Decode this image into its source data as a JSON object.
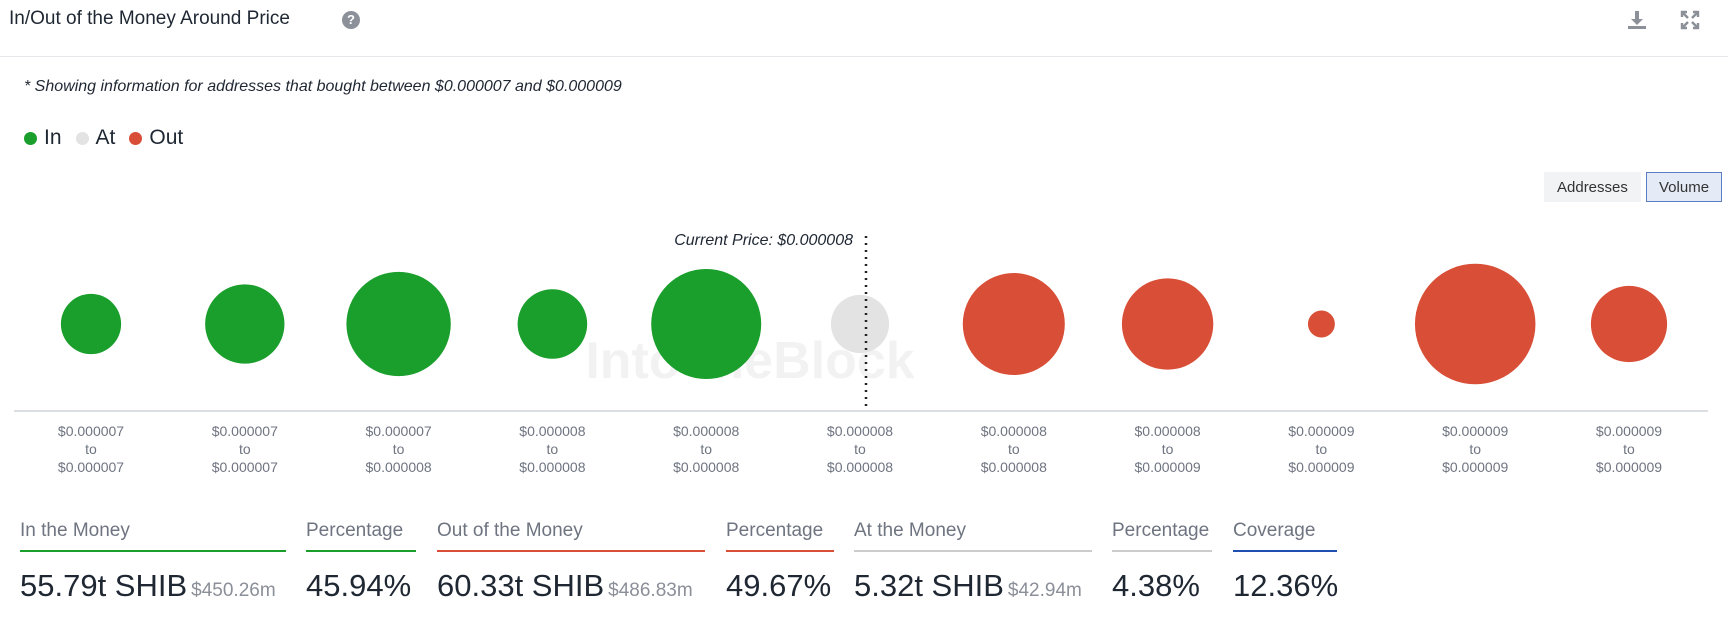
{
  "header": {
    "title": "In/Out of the Money Around Price",
    "help_icon": "question-circle-icon",
    "download_icon": "download-icon",
    "expand_icon": "expand-icon"
  },
  "note": "* Showing information for addresses that bought between $0.000007 and $0.000009",
  "legend": [
    {
      "label": "In",
      "color": "#1a9e2c"
    },
    {
      "label": "At",
      "color": "#e3e3e3"
    },
    {
      "label": "Out",
      "color": "#d94e36"
    }
  ],
  "toggles": {
    "addresses": "Addresses",
    "volume": "Volume",
    "active": "Volume"
  },
  "chart_data": {
    "type": "bubble",
    "current_price_label": "Current Price: $0.000008",
    "current_price_index": 5,
    "watermark": "IntoTheBlock",
    "categories": [
      [
        "$0.000007",
        "to",
        "$0.000007"
      ],
      [
        "$0.000007",
        "to",
        "$0.000007"
      ],
      [
        "$0.000007",
        "to",
        "$0.000008"
      ],
      [
        "$0.000008",
        "to",
        "$0.000008"
      ],
      [
        "$0.000008",
        "to",
        "$0.000008"
      ],
      [
        "$0.000008",
        "to",
        "$0.000008"
      ],
      [
        "$0.000008",
        "to",
        "$0.000008"
      ],
      [
        "$0.000008",
        "to",
        "$0.000009"
      ],
      [
        "$0.000009",
        "to",
        "$0.000009"
      ],
      [
        "$0.000009",
        "to",
        "$0.000009"
      ],
      [
        "$0.000009",
        "to",
        "$0.000009"
      ]
    ],
    "status": [
      "In",
      "In",
      "In",
      "In",
      "In",
      "At",
      "Out",
      "Out",
      "Out",
      "Out",
      "Out"
    ],
    "relative_volume": [
      0.3,
      0.52,
      0.9,
      0.4,
      1.0,
      0.28,
      0.86,
      0.69,
      0.06,
      1.2,
      0.48
    ]
  },
  "stats": [
    {
      "label": "In the Money",
      "value": "55.79t SHIB",
      "sub": "$450.26m",
      "color": "#1a9e2c"
    },
    {
      "label": "Percentage",
      "value": "45.94%",
      "sub": "",
      "color": "#1a9e2c"
    },
    {
      "label": "Out of the Money",
      "value": "60.33t SHIB",
      "sub": "$486.83m",
      "color": "#d94e36"
    },
    {
      "label": "Percentage",
      "value": "49.67%",
      "sub": "",
      "color": "#d94e36"
    },
    {
      "label": "At the Money",
      "value": "5.32t SHIB",
      "sub": "$42.94m",
      "color": "#cccccc"
    },
    {
      "label": "Percentage",
      "value": "4.38%",
      "sub": "",
      "color": "#cccccc"
    },
    {
      "label": "Coverage",
      "value": "12.36%",
      "sub": "",
      "color": "#1f4fb0"
    }
  ]
}
